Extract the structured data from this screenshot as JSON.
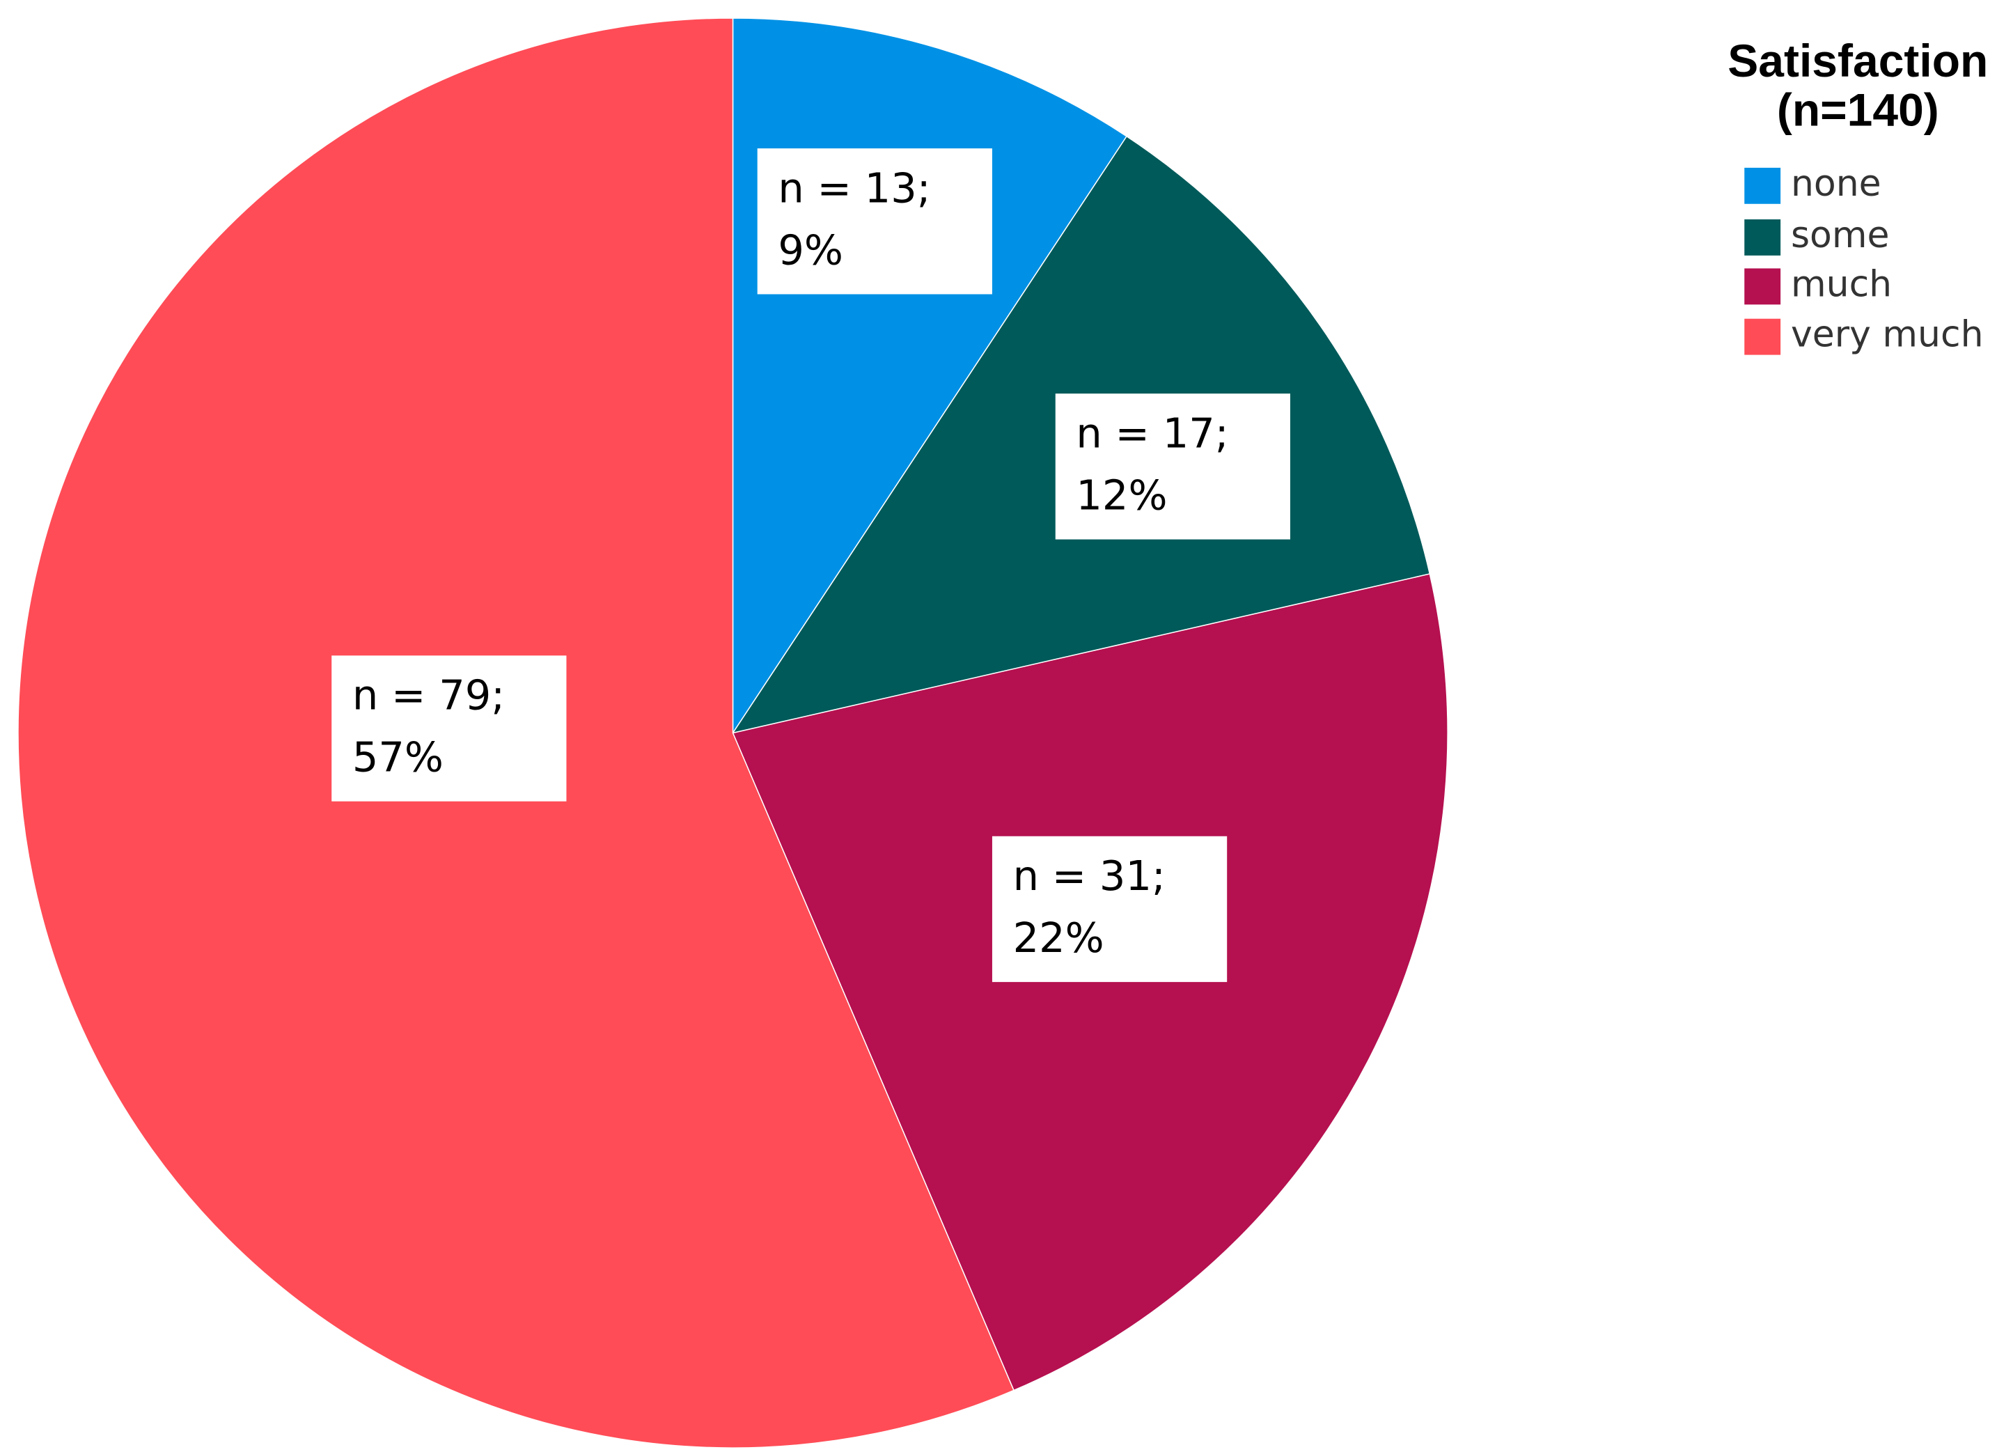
{
  "chart_data": {
    "type": "pie",
    "legend_title_lines": [
      "Satisfaction",
      "(n=140)"
    ],
    "categories": [
      "none",
      "some",
      "much",
      "very much"
    ],
    "values": [
      13,
      17,
      31,
      79
    ],
    "value_labels": [
      "n = 13;",
      "n = 17;",
      "n = 31;",
      "n = 79;"
    ],
    "percents": [
      9,
      12,
      22,
      57
    ],
    "percent_labels": [
      "9%",
      "12%",
      "22%",
      "57%"
    ],
    "colors": [
      "#0091e6",
      "#005a5a",
      "#b5104f",
      "#ff4c56"
    ],
    "legend_position": "top-right"
  }
}
